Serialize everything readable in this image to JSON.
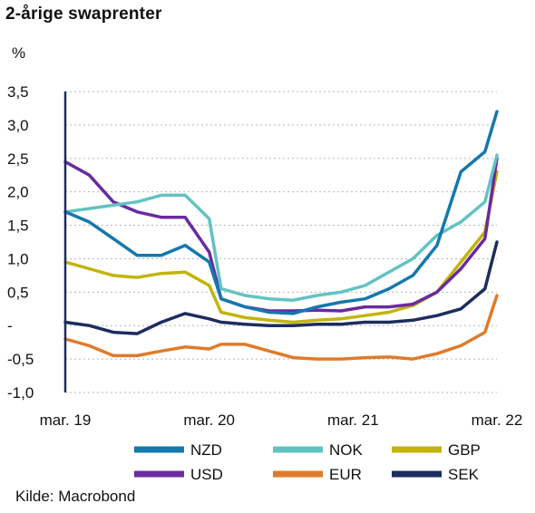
{
  "title": "2-årige swaprenter",
  "unit_label": "%",
  "source": "Kilde: Macrobond",
  "chart_data": {
    "type": "line",
    "title": "2-årige swaprenter",
    "ylabel": "%",
    "xlabel": "",
    "ylim": [
      -1.0,
      3.5
    ],
    "xlim": [
      "2019-03",
      "2022-03"
    ],
    "x_ticks": [
      "mar. 19",
      "mar. 20",
      "mar. 21",
      "mar. 22"
    ],
    "y_ticks": [
      "3,5",
      "3,0",
      "2,5",
      "2,0",
      "1,5",
      "1,0",
      "0,5",
      "-",
      "-0,5",
      "-1,0"
    ],
    "y_tick_values": [
      3.5,
      3.0,
      2.5,
      2.0,
      1.5,
      1.0,
      0.5,
      0.0,
      -0.5,
      -1.0
    ],
    "grid": "horizontal dashed",
    "legend_position": "bottom",
    "x": [
      "2019-03",
      "2019-05",
      "2019-07",
      "2019-09",
      "2019-11",
      "2020-01",
      "2020-03",
      "2020-04",
      "2020-06",
      "2020-08",
      "2020-10",
      "2020-12",
      "2021-02",
      "2021-04",
      "2021-06",
      "2021-08",
      "2021-10",
      "2021-12",
      "2022-02",
      "2022-03"
    ],
    "series": [
      {
        "name": "NZD",
        "color": "#1478ad",
        "values": [
          1.7,
          1.55,
          1.3,
          1.05,
          1.05,
          1.2,
          0.95,
          0.4,
          0.28,
          0.2,
          0.18,
          0.28,
          0.35,
          0.4,
          0.55,
          0.75,
          1.2,
          2.3,
          2.6,
          3.2
        ]
      },
      {
        "name": "NOK",
        "color": "#62c3c3",
        "values": [
          1.7,
          1.75,
          1.8,
          1.85,
          1.95,
          1.95,
          1.6,
          0.55,
          0.45,
          0.4,
          0.38,
          0.45,
          0.5,
          0.6,
          0.8,
          1.0,
          1.35,
          1.55,
          1.85,
          2.55
        ]
      },
      {
        "name": "GBP",
        "color": "#c2b40a",
        "values": [
          0.95,
          0.85,
          0.75,
          0.72,
          0.78,
          0.8,
          0.6,
          0.2,
          0.12,
          0.08,
          0.05,
          0.08,
          0.1,
          0.15,
          0.2,
          0.3,
          0.5,
          0.95,
          1.4,
          2.3
        ]
      },
      {
        "name": "USD",
        "color": "#6a2aa0",
        "values": [
          2.45,
          2.25,
          1.85,
          1.7,
          1.62,
          1.62,
          1.1,
          0.4,
          0.28,
          0.22,
          0.22,
          0.23,
          0.22,
          0.28,
          0.28,
          0.32,
          0.5,
          0.85,
          1.3,
          2.5
        ]
      },
      {
        "name": "EUR",
        "color": "#e07a2a",
        "values": [
          -0.2,
          -0.3,
          -0.45,
          -0.45,
          -0.38,
          -0.32,
          -0.35,
          -0.28,
          -0.28,
          -0.38,
          -0.48,
          -0.5,
          -0.5,
          -0.48,
          -0.47,
          -0.5,
          -0.42,
          -0.3,
          -0.1,
          0.45
        ]
      },
      {
        "name": "SEK",
        "color": "#1c2d5e",
        "values": [
          0.05,
          0.0,
          -0.1,
          -0.12,
          0.05,
          0.18,
          0.1,
          0.05,
          0.02,
          0.0,
          0.0,
          0.02,
          0.02,
          0.05,
          0.05,
          0.08,
          0.15,
          0.25,
          0.55,
          1.25
        ]
      }
    ]
  }
}
